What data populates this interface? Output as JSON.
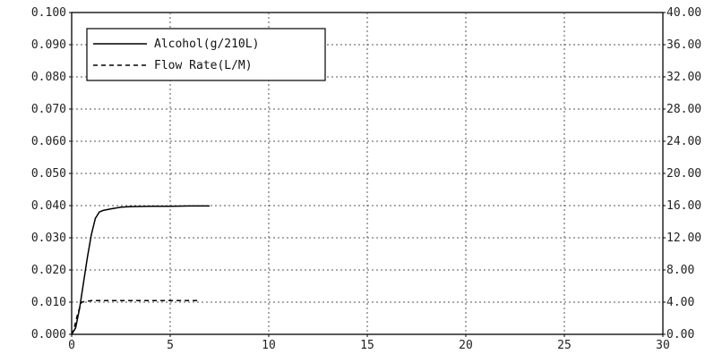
{
  "chart_data": {
    "type": "line",
    "title": "",
    "xlabel": "",
    "ylabel": "",
    "xlim": [
      0,
      30
    ],
    "ylim_left": [
      0,
      0.1
    ],
    "ylim_right": [
      0,
      40
    ],
    "grid": true,
    "legend_placement": "top-left",
    "x_ticks": [
      "0",
      "5",
      "10",
      "15",
      "20",
      "25",
      "30"
    ],
    "y_ticks_left": [
      "0.000",
      "0.010",
      "0.020",
      "0.030",
      "0.040",
      "0.050",
      "0.060",
      "0.070",
      "0.080",
      "0.090",
      "0.100"
    ],
    "y_ticks_right": [
      "0.00",
      "4.00",
      "8.00",
      "12.00",
      "16.00",
      "20.00",
      "24.00",
      "28.00",
      "32.00",
      "36.00",
      "40.00"
    ],
    "series": [
      {
        "name": "Alcohol(g/210L)",
        "axis": "left",
        "style": "solid",
        "color": "#000000",
        "x": [
          0,
          0.2,
          0.4,
          0.6,
          0.8,
          1.0,
          1.2,
          1.4,
          1.6,
          2.0,
          2.5,
          3.0,
          4.0,
          5.0,
          6.0,
          7.0
        ],
        "y": [
          0,
          0.002,
          0.008,
          0.016,
          0.024,
          0.031,
          0.036,
          0.038,
          0.0385,
          0.039,
          0.0395,
          0.0397,
          0.0398,
          0.0398,
          0.0399,
          0.0399
        ]
      },
      {
        "name": "Flow Rate(L/M)",
        "axis": "right",
        "style": "dashed",
        "color": "#000000",
        "x": [
          0,
          0.1,
          0.3,
          0.5,
          1.0,
          2.0,
          3.0,
          4.0,
          5.0,
          6.0,
          6.5
        ],
        "y": [
          0,
          0.5,
          2.5,
          4.0,
          4.2,
          4.2,
          4.2,
          4.2,
          4.2,
          4.2,
          4.2
        ]
      }
    ]
  }
}
